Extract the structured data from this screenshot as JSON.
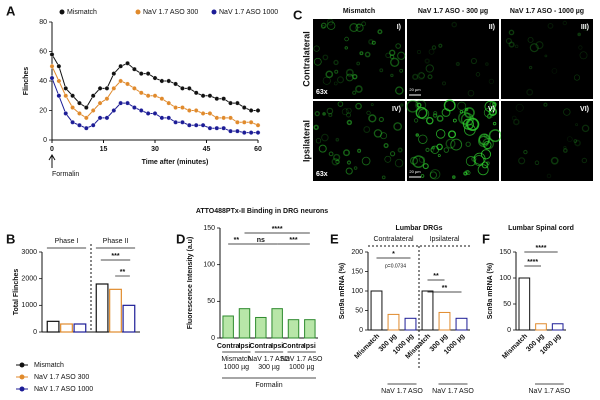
{
  "panels": [
    "A",
    "B",
    "C",
    "D",
    "E",
    "F"
  ],
  "chart_data": [
    {
      "type": "line",
      "xlabel": "Time after (minutes)",
      "ylabel": "Flinches",
      "annotation": "Formalin",
      "x": [
        0,
        2,
        4,
        6,
        8,
        10,
        12,
        14,
        16,
        18,
        20,
        22,
        24,
        26,
        28,
        30,
        32,
        34,
        36,
        38,
        40,
        42,
        44,
        46,
        48,
        50,
        52,
        54,
        56,
        58,
        60
      ],
      "xlim": [
        0,
        60
      ],
      "xticks": [
        0,
        15,
        30,
        45,
        60
      ],
      "ylim": [
        0,
        80
      ],
      "yticks": [
        0,
        20,
        40,
        60,
        80
      ],
      "series": [
        {
          "name": "Mismatch",
          "color": "#111111",
          "values": [
            58,
            50,
            35,
            30,
            25,
            22,
            30,
            35,
            35,
            45,
            50,
            52,
            48,
            45,
            45,
            42,
            40,
            40,
            38,
            35,
            35,
            32,
            30,
            30,
            28,
            28,
            25,
            25,
            22,
            20,
            20
          ]
        },
        {
          "name": "NaV 1.7 ASO 300",
          "color": "#e08a2c",
          "values": [
            50,
            40,
            30,
            22,
            18,
            15,
            20,
            25,
            28,
            35,
            40,
            38,
            35,
            32,
            30,
            30,
            28,
            25,
            22,
            22,
            20,
            20,
            18,
            18,
            15,
            15,
            15,
            12,
            12,
            12,
            10
          ]
        },
        {
          "name": "NaV 1.7 ASO 1000",
          "color": "#1c1c96",
          "values": [
            42,
            30,
            18,
            12,
            10,
            8,
            10,
            15,
            15,
            20,
            25,
            25,
            22,
            20,
            18,
            18,
            15,
            15,
            12,
            12,
            10,
            10,
            10,
            8,
            8,
            8,
            6,
            6,
            5,
            5,
            5
          ]
        }
      ]
    },
    {
      "type": "grouped_bar",
      "ylabel": "Total Flinches",
      "categories": [
        "Phase I",
        "Phase II"
      ],
      "ylim": [
        0,
        3000
      ],
      "yticks": [
        0,
        1000,
        2000,
        3000
      ],
      "annotations": [
        "***",
        "**"
      ],
      "series": [
        {
          "name": "Mismatch",
          "color": "#111111",
          "values": [
            400,
            1800
          ]
        },
        {
          "name": "NaV 1.7 ASO 300",
          "color": "#e08a2c",
          "values": [
            300,
            1600
          ]
        },
        {
          "name": "NaV 1.7 ASO 1000",
          "color": "#1c1c96",
          "values": [
            300,
            1000
          ]
        }
      ]
    },
    {
      "type": "bar",
      "title": "ATTO488PTx-II Binding in DRG neurons",
      "ylabel": "Fluorescence Intensity (a.u)",
      "categories": [
        "Contra",
        "Ipsi",
        "Contra",
        "Ipsi",
        "Contra",
        "Ipsi"
      ],
      "values": [
        30,
        40,
        28,
        40,
        25,
        25
      ],
      "color": "#b8e6a8",
      "ylim": [
        0,
        150
      ],
      "yticks": [
        0,
        50,
        100,
        150
      ],
      "groups": [
        [
          "Mismatch",
          "1000 µg"
        ],
        [
          "NaV 1.7 ASO",
          "300 µg"
        ],
        [
          "NaV 1.7 ASO",
          "1000 µg"
        ]
      ],
      "xlabel": "Formalin",
      "annotations": [
        "**",
        "ns",
        "***",
        "****"
      ]
    },
    {
      "type": "bar",
      "title": "Lumbar DRGs",
      "subtitles": [
        "Contralateral",
        "Ipsilateral"
      ],
      "ylabel": "Scn9a mRNA (%)",
      "categories": [
        "Mismatch",
        "300 µg",
        "1000 µg",
        "Mismatch",
        "300 µg",
        "1000 µg"
      ],
      "values": [
        100,
        40,
        30,
        100,
        45,
        30
      ],
      "colors": [
        "#111111",
        "#e08a2c",
        "#1c1c96",
        "#111111",
        "#e08a2c",
        "#1c1c96"
      ],
      "ylim": [
        0,
        200
      ],
      "yticks": [
        0,
        50,
        100,
        150,
        200
      ],
      "groups": [
        "NaV 1.7 ASO",
        "NaV 1.7 ASO"
      ],
      "annotations": [
        "p=0.0734",
        "*",
        "**",
        "**"
      ]
    },
    {
      "type": "bar",
      "title": "Lumbar Spinal cord",
      "ylabel": "Scn9a mRNA (%)",
      "categories": [
        "Mismatch",
        "300 µg",
        "1000 µg"
      ],
      "values": [
        100,
        12,
        12
      ],
      "colors": [
        "#111111",
        "#e08a2c",
        "#1c1c96"
      ],
      "ylim": [
        0,
        150
      ],
      "yticks": [
        0,
        50,
        100,
        150
      ],
      "groups": [
        "NaV 1.7 ASO"
      ],
      "annotations": [
        "****",
        "****"
      ]
    }
  ],
  "image_panel": {
    "columns": [
      "Mismatch",
      "NaV 1.7 ASO - 300 µg",
      "NaV 1.7 ASO - 1000 µg"
    ],
    "rows": [
      "Contralateral",
      "Ipsilateral"
    ],
    "labels": [
      "I)",
      "II)",
      "III)",
      "IV)",
      "V)",
      "VI)"
    ],
    "magnification": [
      "63x",
      "63x"
    ],
    "scale_bar": [
      "20 µm",
      "20 µm"
    ]
  }
}
